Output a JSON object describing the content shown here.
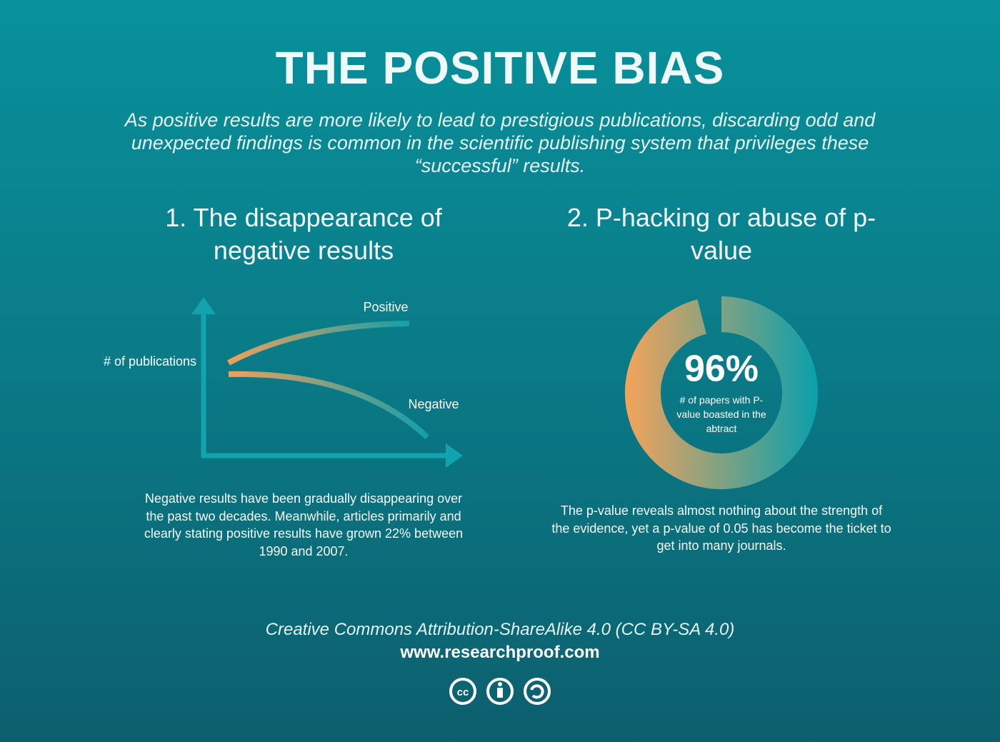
{
  "title": "THE POSITIVE BIAS",
  "subtitle": "As positive results are more likely to lead to prestigious publications, discarding odd and unexpected findings is common in the scientific publishing system that privileges these “successful” results.",
  "section1": {
    "heading": "1. The disappearance of negative results",
    "y_label": "# of publications",
    "positive_label": "Positive",
    "negative_label": "Negative",
    "body": "Negative results have been gradually disappearing over the past two decades. Meanwhile, articles primarily and clearly stating positive results have grown 22% between 1990 and 2007."
  },
  "section2": {
    "heading": "2. P-hacking or abuse of p-value",
    "donut": {
      "value": 96,
      "label": "96%",
      "caption": "# of papers with P-value boasted in the abtract"
    },
    "body": "The p-value reveals almost nothing about the strength of the evidence, yet a p-value of 0.05 has become the ticket to get into many journals."
  },
  "footer": {
    "license": "Creative Commons Attribution-ShareAlike 4.0 (CC BY-SA 4.0)",
    "url": "www.researchproof.com"
  }
}
